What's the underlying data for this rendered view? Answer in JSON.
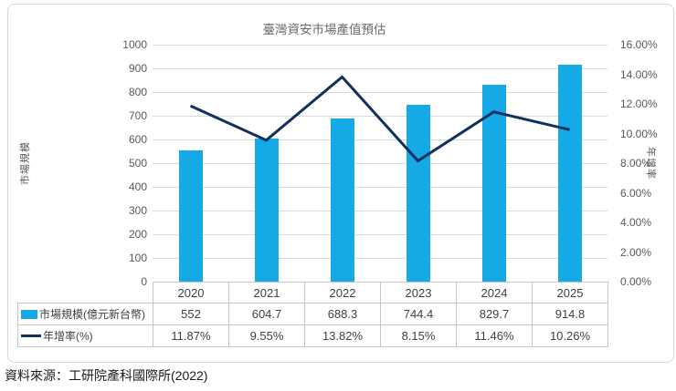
{
  "chart_data": {
    "type": "combo",
    "title": "臺灣資安市場產值預估",
    "categories": [
      "2020",
      "2021",
      "2022",
      "2023",
      "2024",
      "2025"
    ],
    "series": [
      {
        "name": "市場規模(億元新台幣)",
        "chart_type": "bar",
        "axis": "left",
        "color": "#15a9e5",
        "values": [
          552,
          604.7,
          688.3,
          744.4,
          829.7,
          914.8
        ],
        "display": [
          "552",
          "604.7",
          "688.3",
          "744.4",
          "829.7",
          "914.8"
        ]
      },
      {
        "name": "年增率(%)",
        "chart_type": "line",
        "axis": "right",
        "color": "#12305e",
        "values": [
          11.87,
          9.55,
          13.82,
          8.15,
          11.46,
          10.26
        ],
        "display": [
          "11.87%",
          "9.55%",
          "13.82%",
          "8.15%",
          "11.46%",
          "10.26%"
        ]
      }
    ],
    "left_axis": {
      "title": "市場規模",
      "min": 0,
      "max": 1000,
      "tick_step": 100,
      "tick_labels": [
        "0",
        "100",
        "200",
        "300",
        "400",
        "500",
        "600",
        "700",
        "800",
        "900",
        "1000"
      ]
    },
    "right_axis": {
      "title": "年增率",
      "min": 0,
      "max": 16,
      "tick_step": 2,
      "tick_labels": [
        "0.00%",
        "2.00%",
        "4.00%",
        "6.00%",
        "8.00%",
        "10.00%",
        "12.00%",
        "14.00%",
        "16.00%"
      ]
    },
    "grid": true,
    "legend_position": "table-left"
  },
  "source": "資料來源：工研院產科國際所(2022)",
  "colors": {
    "bar": "#15a9e5",
    "line": "#12305e",
    "grid": "#d9d9d9",
    "axis_text": "#595959",
    "table_text": "#404040",
    "table_border": "#c6c6c6",
    "card_border": "#d8d8d8"
  }
}
